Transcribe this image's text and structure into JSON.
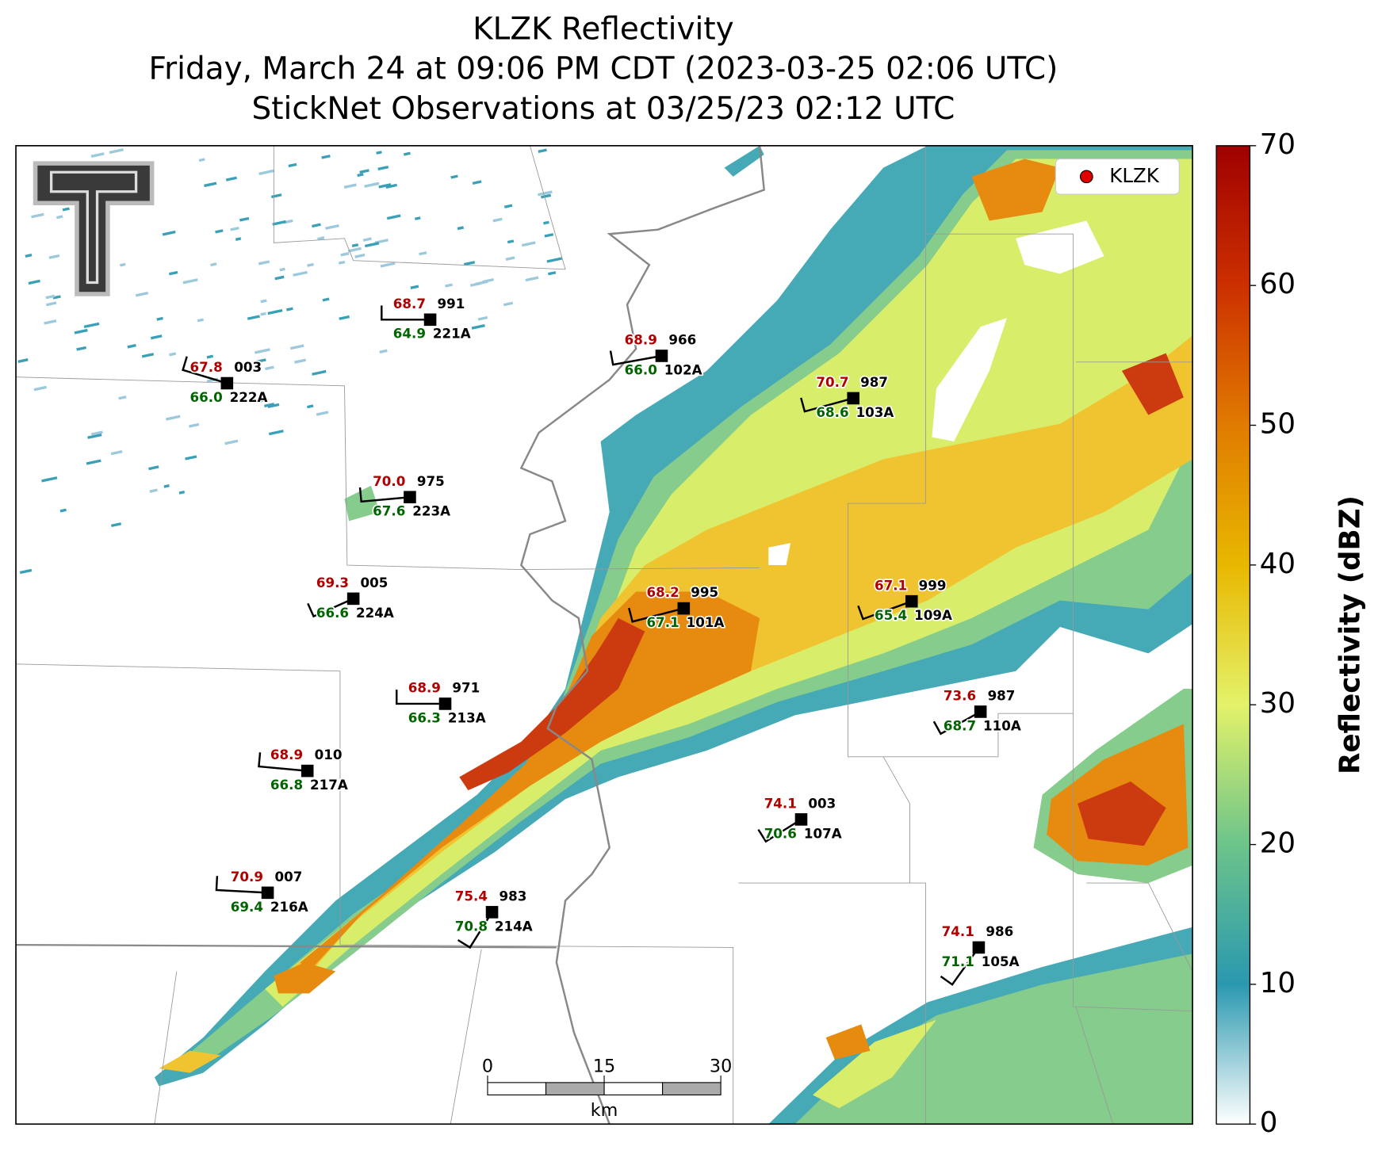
{
  "title": {
    "lines": [
      "KLZK Reflectivity",
      "Friday, March 24 at 09:06 PM CDT (2023-03-25 02:06 UTC)",
      "StickNet Observations at 03/25/23 02:12 UTC"
    ]
  },
  "legend": {
    "label": "KLZK"
  },
  "colorbar": {
    "label": "Reflectivity (dBZ)",
    "lim": [
      0,
      70
    ],
    "ticks": [
      0,
      10,
      20,
      30,
      40,
      50,
      60,
      70
    ]
  },
  "scale_bar": {
    "ticks": [
      0,
      15,
      30
    ],
    "unit": "km"
  },
  "stations": [
    {
      "id": "221A",
      "temperature": "68.7",
      "dewpoint": "64.9",
      "pressure": "991"
    },
    {
      "id": "222A",
      "temperature": "67.8",
      "dewpoint": "66.0",
      "pressure": "003"
    },
    {
      "id": "102A",
      "temperature": "68.9",
      "dewpoint": "66.0",
      "pressure": "966"
    },
    {
      "id": "103A",
      "temperature": "70.7",
      "dewpoint": "68.6",
      "pressure": "987"
    },
    {
      "id": "223A",
      "temperature": "70.0",
      "dewpoint": "67.6",
      "pressure": "975"
    },
    {
      "id": "224A",
      "temperature": "69.3",
      "dewpoint": "66.6",
      "pressure": "005"
    },
    {
      "id": "101A",
      "temperature": "68.2",
      "dewpoint": "67.1",
      "pressure": "995"
    },
    {
      "id": "109A",
      "temperature": "67.1",
      "dewpoint": "65.4",
      "pressure": "999"
    },
    {
      "id": "213A",
      "temperature": "68.9",
      "dewpoint": "66.3",
      "pressure": "971"
    },
    {
      "id": "110A",
      "temperature": "73.6",
      "dewpoint": "68.7",
      "pressure": "987"
    },
    {
      "id": "217A",
      "temperature": "68.9",
      "dewpoint": "66.8",
      "pressure": "010"
    },
    {
      "id": "107A",
      "temperature": "74.1",
      "dewpoint": "70.6",
      "pressure": "003"
    },
    {
      "id": "216A",
      "temperature": "70.9",
      "dewpoint": "69.4",
      "pressure": "007"
    },
    {
      "id": "214A",
      "temperature": "75.4",
      "dewpoint": "70.8",
      "pressure": "983"
    },
    {
      "id": "105A",
      "temperature": "74.1",
      "dewpoint": "71.1",
      "pressure": "986"
    }
  ]
}
